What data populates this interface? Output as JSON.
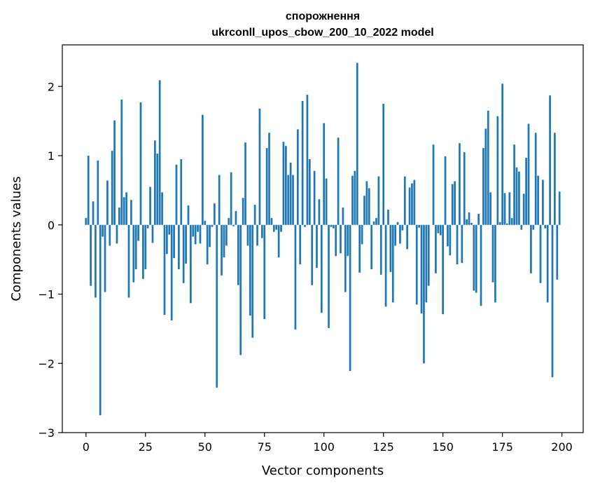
{
  "chart_data": {
    "type": "bar",
    "title": "спорожнення",
    "subtitle": "ukrconll_upos_cbow_200_10_2022 model",
    "xlabel": "Vector components",
    "ylabel": "Components values",
    "xlim": [
      -9.95,
      208.95
    ],
    "ylim": [
      -3.0,
      2.6
    ],
    "xticks": [
      0,
      25,
      50,
      75,
      100,
      125,
      150,
      175,
      200
    ],
    "xtick_labels": [
      "0",
      "25",
      "50",
      "75",
      "100",
      "125",
      "150",
      "175",
      "200"
    ],
    "yticks": [
      -3,
      -2,
      -1,
      0,
      1,
      2
    ],
    "ytick_labels": [
      "−3",
      "−2",
      "−1",
      "0",
      "1",
      "2"
    ],
    "bar_color": "#1f77b4",
    "grid": false,
    "legend": "none",
    "x": [
      0,
      1,
      2,
      3,
      4,
      5,
      6,
      7,
      8,
      9,
      10,
      11,
      12,
      13,
      14,
      15,
      16,
      17,
      18,
      19,
      20,
      21,
      22,
      23,
      24,
      25,
      26,
      27,
      28,
      29,
      30,
      31,
      32,
      33,
      34,
      35,
      36,
      37,
      38,
      39,
      40,
      41,
      42,
      43,
      44,
      45,
      46,
      47,
      48,
      49,
      50,
      51,
      52,
      53,
      54,
      55,
      56,
      57,
      58,
      59,
      60,
      61,
      62,
      63,
      64,
      65,
      66,
      67,
      68,
      69,
      70,
      71,
      72,
      73,
      74,
      75,
      76,
      77,
      78,
      79,
      80,
      81,
      82,
      83,
      84,
      85,
      86,
      87,
      88,
      89,
      90,
      91,
      92,
      93,
      94,
      95,
      96,
      97,
      98,
      99,
      100,
      101,
      102,
      103,
      104,
      105,
      106,
      107,
      108,
      109,
      110,
      111,
      112,
      113,
      114,
      115,
      116,
      117,
      118,
      119,
      120,
      121,
      122,
      123,
      124,
      125,
      126,
      127,
      128,
      129,
      130,
      131,
      132,
      133,
      134,
      135,
      136,
      137,
      138,
      139,
      140,
      141,
      142,
      143,
      144,
      145,
      146,
      147,
      148,
      149,
      150,
      151,
      152,
      153,
      154,
      155,
      156,
      157,
      158,
      159,
      160,
      161,
      162,
      163,
      164,
      165,
      166,
      167,
      168,
      169,
      170,
      171,
      172,
      173,
      174,
      175,
      176,
      177,
      178,
      179,
      180,
      181,
      182,
      183,
      184,
      185,
      186,
      187,
      188,
      189,
      190,
      191,
      192,
      193,
      194,
      195,
      196,
      197,
      198,
      199
    ],
    "values": [
      0.1,
      1.0,
      -0.88,
      0.34,
      -1.05,
      0.93,
      -2.75,
      -0.17,
      -0.97,
      0.64,
      -0.3,
      1.07,
      1.51,
      -0.27,
      0.25,
      1.81,
      0.4,
      0.47,
      -1.05,
      0.36,
      -0.83,
      -0.64,
      -0.23,
      1.77,
      -0.78,
      -0.64,
      -0.05,
      0.55,
      -0.26,
      1.22,
      1.03,
      2.09,
      0.47,
      -1.3,
      -0.42,
      -0.14,
      -1.38,
      -0.48,
      0.87,
      -0.64,
      0.95,
      -0.84,
      -0.56,
      0.28,
      -1.13,
      -0.17,
      -0.28,
      -0.1,
      -0.27,
      1.59,
      0.06,
      -0.57,
      -0.32,
      -0.03,
      0.31,
      -2.35,
      0.72,
      -0.73,
      -0.47,
      -0.3,
      0.1,
      0.76,
      -0.02,
      0.2,
      -0.87,
      -1.88,
      0.39,
      1.19,
      -0.3,
      -1.31,
      -1.63,
      0.29,
      -0.3,
      1.68,
      -0.19,
      -1.36,
      1.11,
      1.33,
      0.1,
      -0.1,
      -0.07,
      -0.47,
      -0.1,
      1.2,
      1.14,
      0.72,
      0.9,
      0.72,
      -1.51,
      1.38,
      -0.57,
      1.79,
      -0.03,
      1.88,
      0.95,
      -0.87,
      0.78,
      -0.62,
      0.37,
      -1.27,
      1.47,
      0.67,
      -1.49,
      -0.03,
      -0.05,
      -0.45,
      1.26,
      -0.41,
      0.25,
      -0.97,
      -0.45,
      -2.11,
      0.71,
      0.78,
      2.34,
      -0.69,
      -0.28,
      0.42,
      0.63,
      0.53,
      -0.64,
      0.05,
      0.1,
      0.7,
      -0.72,
      1.75,
      -1.18,
      0.22,
      -0.68,
      -1.12,
      -0.3,
      0.04,
      -0.27,
      -0.08,
      0.7,
      -0.35,
      0.54,
      0.6,
      0.65,
      -1.15,
      -0.04,
      -1.28,
      -2.0,
      -1.12,
      -0.88,
      0.0,
      1.16,
      -0.7,
      -0.12,
      -0.15,
      -1.29,
      0.99,
      -0.31,
      -0.44,
      0.59,
      0.63,
      -0.57,
      1.18,
      -0.55,
      1.05,
      0.08,
      0.18,
      0.03,
      -0.95,
      -0.98,
      0.16,
      -1.17,
      1.11,
      1.39,
      1.65,
      0.47,
      -0.83,
      -1.12,
      1.57,
      0.04,
      2.04,
      0.46,
      0.02,
      0.47,
      0.1,
      1.16,
      0.83,
      0.77,
      -0.07,
      0.45,
      0.97,
      1.46,
      -0.7,
      -0.07,
      1.33,
      0.71,
      -0.84,
      0.65,
      -0.05,
      -1.12,
      1.87,
      -2.2,
      1.33,
      -0.79,
      0.48
    ]
  }
}
